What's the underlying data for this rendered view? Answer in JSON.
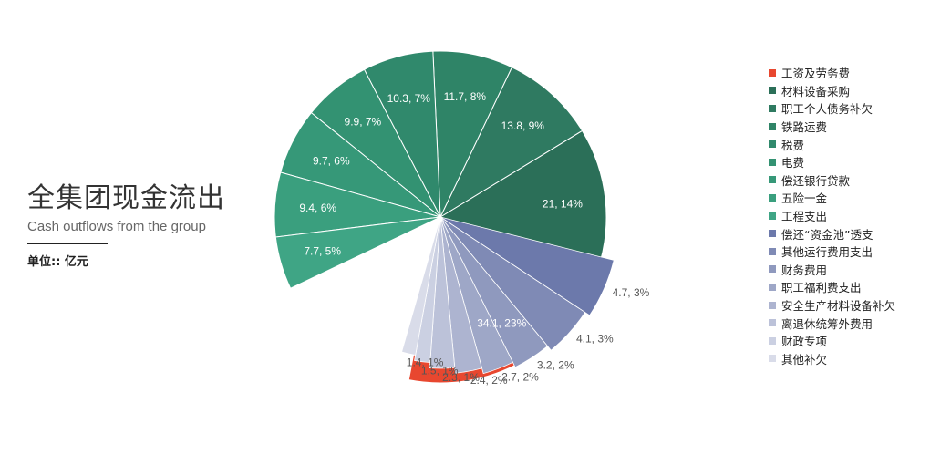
{
  "title": {
    "zh": "全集团现金流出",
    "en": "Cash outflows from the group",
    "unit": "单位:: 亿元"
  },
  "chart_data": {
    "type": "pie",
    "exploded_group": "small outflows shown as a separated fan on the lower right",
    "legend_placement": "right",
    "slices": [
      {
        "name": "工资及劳务费",
        "value": 34.1,
        "percent": "23%",
        "label": "34.1, 23%",
        "color": "#e8472f"
      },
      {
        "name": "材料设备采购",
        "value": 21,
        "percent": "14%",
        "label": "21, 14%",
        "color": "#2b6f58"
      },
      {
        "name": "职工个人债务补欠",
        "value": 13.8,
        "percent": "9%",
        "label": "13.8, 9%",
        "color": "#2f7a61"
      },
      {
        "name": "铁路运费",
        "value": 11.7,
        "percent": "8%",
        "label": "11.7, 8%",
        "color": "#2f8467"
      },
      {
        "name": "税费",
        "value": 10.3,
        "percent": "7%",
        "label": "10.3, 7%",
        "color": "#30896c"
      },
      {
        "name": "电费",
        "value": 9.9,
        "percent": "7%",
        "label": "9.9, 7%",
        "color": "#339272"
      },
      {
        "name": "偿还银行贷款",
        "value": 9.7,
        "percent": "6%",
        "label": "9.7, 6%",
        "color": "#369878"
      },
      {
        "name": "五险一金",
        "value": 9.4,
        "percent": "6%",
        "label": "9.4, 6%",
        "color": "#3a9f7e"
      },
      {
        "name": "工程支出",
        "value": 7.7,
        "percent": "5%",
        "label": "7.7, 5%",
        "color": "#3fa585"
      },
      {
        "name": "偿还“资金池”透支",
        "value": 4.7,
        "percent": "3%",
        "label": "4.7, 3%",
        "color": "#6c79ab"
      },
      {
        "name": "其他运行费用支出",
        "value": 4.1,
        "percent": "3%",
        "label": "4.1, 3%",
        "color": "#7f8ab5"
      },
      {
        "name": "财务费用",
        "value": 3.2,
        "percent": "2%",
        "label": "3.2, 2%",
        "color": "#8f99be"
      },
      {
        "name": "职工福利费支出",
        "value": 2.7,
        "percent": "2%",
        "label": "2.7, 2%",
        "color": "#9ea7c7"
      },
      {
        "name": "安全生产材料设备补欠",
        "value": 2.4,
        "percent": "2%",
        "label": "2.4, 2%",
        "color": "#adb4d0"
      },
      {
        "name": "离退休统筹外费用",
        "value": 2.3,
        "percent": "1%",
        "label": "2.3, 1%",
        "color": "#bcc2d9"
      },
      {
        "name": "财政专项",
        "value": 1.5,
        "percent": "1%",
        "label": "1.5, 1%",
        "color": "#cbd0e2"
      },
      {
        "name": "其他补欠",
        "value": 1.4,
        "percent": "1%",
        "label": "1.4, 1%",
        "color": "#d9dce9"
      }
    ]
  }
}
